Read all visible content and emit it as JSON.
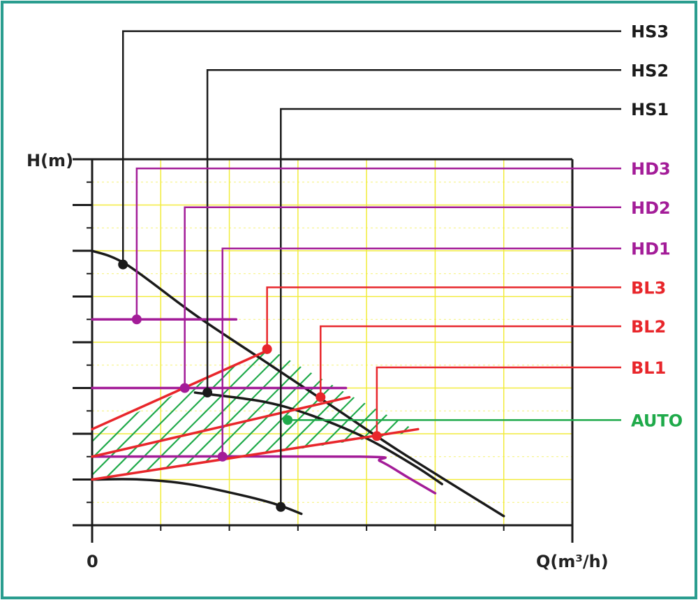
{
  "chart_data": {
    "type": "line",
    "title": "",
    "ylabel": "H(m)",
    "xlabel": "Q(m³/h)",
    "x_tick_labels": [
      "0"
    ],
    "xlim": [
      0,
      7
    ],
    "ylim": [
      0,
      8
    ],
    "colors": {
      "frame": "#2a9d8f",
      "black": "#1a1a1a",
      "magenta": "#a31c98",
      "red": "#e8262b",
      "green": "#1faa4a",
      "grid": "#f2ec3b"
    },
    "curves": [
      {
        "name": "HS3",
        "color": "black",
        "points": [
          [
            0,
            6
          ],
          [
            0.5,
            5.7
          ],
          [
            1.5,
            4.6
          ],
          [
            2.5,
            3.6
          ],
          [
            3.5,
            2.6
          ],
          [
            4.5,
            1.6
          ],
          [
            6,
            0.2
          ]
        ]
      },
      {
        "name": "HS2",
        "color": "black",
        "points": [
          [
            1.5,
            2.9
          ],
          [
            2.5,
            2.7
          ],
          [
            3.2,
            2.4
          ],
          [
            4,
            1.9
          ],
          [
            4.7,
            1.3
          ],
          [
            5.1,
            0.9
          ]
        ]
      },
      {
        "name": "HS1",
        "color": "black",
        "points": [
          [
            0,
            1
          ],
          [
            0.7,
            1.0
          ],
          [
            1.4,
            0.9
          ],
          [
            2.2,
            0.65
          ],
          [
            2.7,
            0.45
          ],
          [
            3.05,
            0.25
          ]
        ]
      },
      {
        "name": "HD3",
        "color": "magenta",
        "points": [
          [
            0,
            4.5
          ],
          [
            2.1,
            4.5
          ]
        ]
      },
      {
        "name": "HD2",
        "color": "magenta",
        "points": [
          [
            0,
            3
          ],
          [
            3.7,
            3
          ]
        ]
      },
      {
        "name": "HD1",
        "color": "magenta",
        "points": [
          [
            0,
            1.5
          ],
          [
            3.9,
            1.5
          ],
          [
            4.2,
            1.4
          ],
          [
            4.6,
            1.05
          ],
          [
            5,
            0.7
          ]
        ]
      },
      {
        "name": "BL3",
        "color": "red",
        "points": [
          [
            0,
            2.1
          ],
          [
            2.6,
            3.85
          ]
        ]
      },
      {
        "name": "BL2",
        "color": "red",
        "points": [
          [
            0,
            1.5
          ],
          [
            3.75,
            2.8
          ]
        ]
      },
      {
        "name": "BL1",
        "color": "red",
        "points": [
          [
            0,
            1
          ],
          [
            4.75,
            2.1
          ]
        ]
      }
    ],
    "hatch_region": {
      "name": "AUTO",
      "color": "green",
      "points": [
        [
          0,
          1
        ],
        [
          0,
          2
        ],
        [
          2.6,
          3.85
        ],
        [
          3.75,
          2.85
        ],
        [
          4.75,
          2.05
        ]
      ]
    },
    "markers": [
      {
        "name": "HS3",
        "color": "black",
        "x": 0.45,
        "y": 5.7,
        "label_y": 10.8
      },
      {
        "name": "HS2",
        "color": "black",
        "x": 1.68,
        "y": 2.9,
        "label_y": 9.95
      },
      {
        "name": "HS1",
        "color": "black",
        "x": 2.75,
        "y": 0.4,
        "label_y": 9.1
      },
      {
        "name": "HD3",
        "color": "magenta",
        "x": 0.65,
        "y": 4.5,
        "label_y": 7.8
      },
      {
        "name": "HD2",
        "color": "magenta",
        "x": 1.35,
        "y": 3.0,
        "label_y": 6.95
      },
      {
        "name": "HD1",
        "color": "magenta",
        "x": 1.9,
        "y": 1.5,
        "label_y": 6.05
      },
      {
        "name": "BL3",
        "color": "red",
        "x": 2.55,
        "y": 3.85,
        "label_y": 5.2
      },
      {
        "name": "BL2",
        "color": "red",
        "x": 3.33,
        "y": 2.8,
        "label_y": 4.35
      },
      {
        "name": "BL1",
        "color": "red",
        "x": 4.15,
        "y": 1.95,
        "label_y": 3.45
      },
      {
        "name": "AUTO",
        "color": "green",
        "x": 2.85,
        "y": 2.3,
        "label_y": 2.3
      }
    ],
    "grid": true
  }
}
